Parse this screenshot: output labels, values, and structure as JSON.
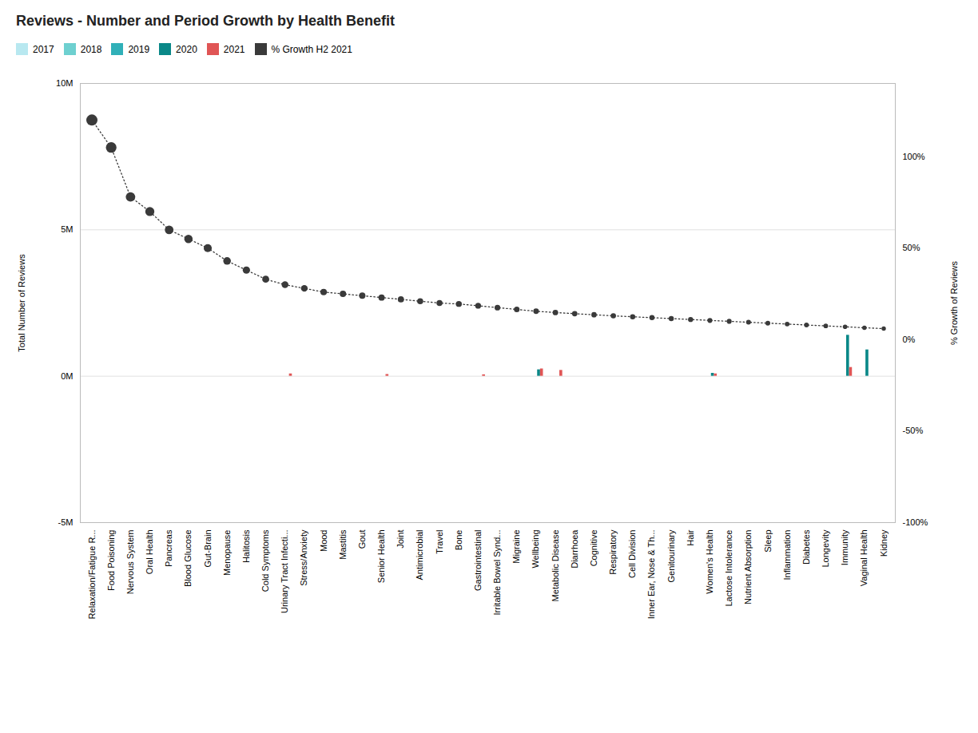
{
  "chart_data": {
    "type": "bar",
    "title": "Reviews - Number and Period Growth by Health Benefit",
    "y_label": "Total Number of Reviews",
    "y2_label": "% Growth of Reviews",
    "categories": [
      "Relaxation/Fatigue R...",
      "Food Poisoning",
      "Nervous System",
      "Oral Health",
      "Pancreas",
      "Blood Glucose",
      "Gut-Brain",
      "Menopause",
      "Halitosis",
      "Cold Symptoms",
      "Urinary Tract Infecti...",
      "Stress/Anxiety",
      "Mood",
      "Mastitis",
      "Gout",
      "Senior Health",
      "Joint",
      "Antimicrobial",
      "Travel",
      "Bone",
      "Gastrointestinal",
      "Irritable Bowel Synd...",
      "Migraine",
      "Wellbeing",
      "Metabolic Disease",
      "Diarrhoea",
      "Cognitive",
      "Respiratory",
      "Cell Division",
      "Inner Ear, Nose & Th...",
      "Genitourinary",
      "Hair",
      "Women's Health",
      "Lactose Intolerance",
      "Nutrient Absorption",
      "Sleep",
      "Inflammation",
      "Diabetes",
      "Longevity",
      "Immunity",
      "Vaginal Health",
      "Kidney"
    ],
    "series": [
      {
        "name": "2017",
        "color": "#b8e8f0",
        "values": [
          0,
          0,
          0,
          0,
          0,
          0,
          0,
          0,
          0,
          0,
          0,
          0,
          0,
          0,
          0,
          0,
          0,
          0,
          0,
          0,
          0,
          0,
          0,
          0,
          0,
          0,
          0,
          0,
          0,
          0,
          0,
          0,
          0,
          0,
          0,
          0,
          0,
          0,
          0,
          0,
          0,
          0
        ]
      },
      {
        "name": "2018",
        "color": "#6ed0d0",
        "values": [
          0,
          0,
          0,
          0,
          0,
          0,
          0,
          0,
          0,
          0,
          0,
          0,
          0,
          0,
          0,
          0,
          0,
          0,
          0,
          0,
          0,
          0,
          0,
          0,
          0,
          0,
          0,
          0,
          0,
          0,
          0,
          0,
          0,
          0,
          0,
          0,
          0,
          0,
          0,
          0,
          0,
          0
        ]
      },
      {
        "name": "2019",
        "color": "#30b0b8",
        "values": [
          0,
          0,
          0,
          0,
          0,
          0,
          0,
          0,
          0,
          0,
          0,
          0,
          0,
          0,
          0,
          0,
          0,
          0,
          0,
          0,
          0,
          0,
          0,
          0,
          0,
          0,
          0,
          0,
          0,
          0,
          0,
          0,
          0,
          0,
          0,
          0,
          0,
          0,
          0,
          0,
          0,
          0
        ]
      },
      {
        "name": "2020",
        "color": "#0a8888",
        "values": [
          0,
          0,
          0,
          0,
          0,
          0,
          0,
          0,
          0,
          0,
          0,
          0,
          0,
          0,
          0,
          0,
          0,
          0,
          0,
          0,
          0,
          0,
          0,
          220000,
          0,
          0,
          0,
          0,
          0,
          0,
          0,
          0,
          100000,
          0,
          0,
          0,
          0,
          0,
          0,
          1400000,
          900000,
          0
        ]
      },
      {
        "name": "2021",
        "color": "#e05555",
        "values": [
          0,
          0,
          0,
          0,
          0,
          0,
          0,
          0,
          0,
          0,
          80000,
          0,
          0,
          0,
          0,
          60000,
          0,
          0,
          0,
          0,
          50000,
          0,
          0,
          250000,
          200000,
          0,
          0,
          0,
          0,
          0,
          0,
          0,
          80000,
          0,
          0,
          0,
          0,
          0,
          0,
          300000,
          0,
          0
        ]
      },
      {
        "name": "% Growth H2 2021",
        "type": "line",
        "axis": "y2",
        "color": "#3a3a3a",
        "marker": "o",
        "line_style": "dotted",
        "values": [
          1.2,
          1.05,
          0.78,
          0.7,
          0.6,
          0.55,
          0.5,
          0.43,
          0.38,
          0.33,
          0.3,
          0.28,
          0.26,
          0.25,
          0.24,
          0.23,
          0.22,
          0.21,
          0.2,
          0.195,
          0.185,
          0.175,
          0.165,
          0.155,
          0.148,
          0.142,
          0.136,
          0.13,
          0.125,
          0.12,
          0.115,
          0.11,
          0.105,
          0.1,
          0.095,
          0.09,
          0.085,
          0.08,
          0.075,
          0.07,
          0.065,
          0.06
        ]
      }
    ],
    "ylim": [
      -5000000,
      10000000
    ],
    "yticks": [
      {
        "value": -5000000,
        "label": "-5M"
      },
      {
        "value": 0,
        "label": "0M"
      },
      {
        "value": 5000000,
        "label": "5M"
      },
      {
        "value": 10000000,
        "label": "10M"
      }
    ],
    "y2lim": [
      -1.0,
      1.4
    ],
    "y2ticks": [
      {
        "value": -1.0,
        "label": "-100%"
      },
      {
        "value": -0.5,
        "label": "-50%"
      },
      {
        "value": 0,
        "label": "0%"
      },
      {
        "value": 0.5,
        "label": "50%"
      },
      {
        "value": 1.0,
        "label": "100%"
      }
    ],
    "grid": true,
    "legend": "top"
  }
}
